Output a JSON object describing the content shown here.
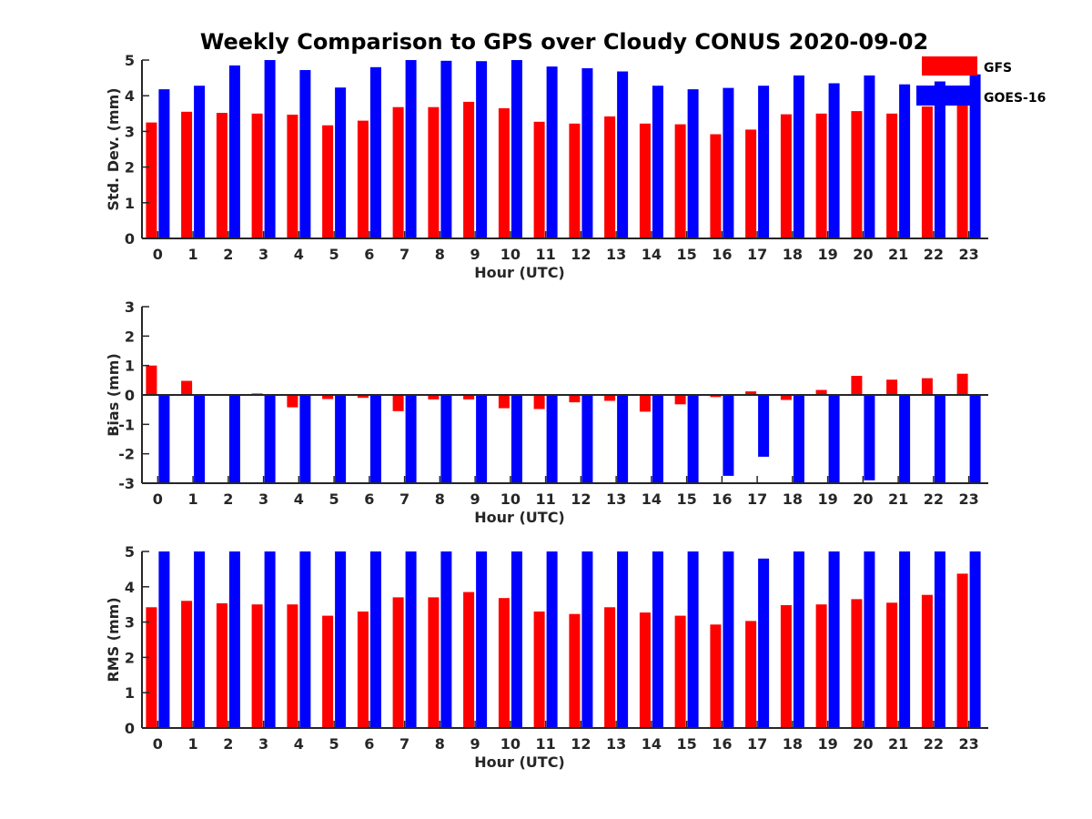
{
  "title": "Weekly Comparison to GPS over Cloudy CONUS 2020-09-02",
  "colors": {
    "GFS": "#ff0000",
    "GOES-16": "#0000ff",
    "axis": "#262626"
  },
  "legend": {
    "items": [
      "GFS",
      "GOES-16"
    ],
    "placement": "top-right"
  },
  "chart_data": [
    {
      "type": "bar",
      "xlabel": "Hour (UTC)",
      "ylabel": "Std. Dev. (mm)",
      "ylim": [
        0,
        5
      ],
      "yticks": [
        0,
        1,
        2,
        3,
        4,
        5
      ],
      "categories": [
        "0",
        "1",
        "2",
        "3",
        "4",
        "5",
        "6",
        "7",
        "8",
        "9",
        "10",
        "11",
        "12",
        "13",
        "14",
        "15",
        "16",
        "17",
        "18",
        "19",
        "20",
        "21",
        "22",
        "23"
      ],
      "series": [
        {
          "name": "GFS",
          "values": [
            3.25,
            3.55,
            3.52,
            3.5,
            3.47,
            3.17,
            3.3,
            3.68,
            3.68,
            3.83,
            3.65,
            3.27,
            3.22,
            3.42,
            3.22,
            3.2,
            2.92,
            3.05,
            3.48,
            3.5,
            3.57,
            3.5,
            3.7,
            3.85
          ]
        },
        {
          "name": "GOES-16",
          "values": [
            4.18,
            4.28,
            4.85,
            5.0,
            4.72,
            4.23,
            4.8,
            5.0,
            4.98,
            4.97,
            5.0,
            4.82,
            4.77,
            4.68,
            4.28,
            4.18,
            4.22,
            4.28,
            4.57,
            4.35,
            4.57,
            4.32,
            4.4,
            4.6
          ]
        }
      ]
    },
    {
      "type": "bar",
      "xlabel": "Hour (UTC)",
      "ylabel": "Bias (mm)",
      "ylim": [
        -3,
        3
      ],
      "yticks": [
        -3,
        -2,
        -1,
        0,
        1,
        2,
        3
      ],
      "categories": [
        "0",
        "1",
        "2",
        "3",
        "4",
        "5",
        "6",
        "7",
        "8",
        "9",
        "10",
        "11",
        "12",
        "13",
        "14",
        "15",
        "16",
        "17",
        "18",
        "19",
        "20",
        "21",
        "22",
        "23"
      ],
      "series": [
        {
          "name": "GFS",
          "values": [
            1.0,
            0.48,
            -0.02,
            0.05,
            -0.42,
            -0.14,
            -0.1,
            -0.55,
            -0.15,
            -0.15,
            -0.45,
            -0.48,
            -0.25,
            -0.2,
            -0.57,
            -0.32,
            -0.07,
            0.12,
            -0.17,
            0.17,
            0.65,
            0.52,
            0.57,
            0.72
          ]
        },
        {
          "name": "GOES-16",
          "values": [
            -3.0,
            -3.0,
            -3.0,
            -3.0,
            -3.0,
            -3.0,
            -3.0,
            -3.0,
            -3.0,
            -3.0,
            -3.0,
            -3.0,
            -3.0,
            -3.0,
            -3.0,
            -3.0,
            -2.75,
            -2.1,
            -3.0,
            -3.0,
            -2.9,
            -3.0,
            -3.0,
            -3.0
          ]
        }
      ]
    },
    {
      "type": "bar",
      "xlabel": "Hour (UTC)",
      "ylabel": "RMS (mm)",
      "ylim": [
        0,
        5
      ],
      "yticks": [
        0,
        1,
        2,
        3,
        4,
        5
      ],
      "categories": [
        "0",
        "1",
        "2",
        "3",
        "4",
        "5",
        "6",
        "7",
        "8",
        "9",
        "10",
        "11",
        "12",
        "13",
        "14",
        "15",
        "16",
        "17",
        "18",
        "19",
        "20",
        "21",
        "22",
        "23"
      ],
      "series": [
        {
          "name": "GFS",
          "values": [
            3.42,
            3.6,
            3.53,
            3.5,
            3.5,
            3.18,
            3.3,
            3.7,
            3.7,
            3.85,
            3.68,
            3.3,
            3.23,
            3.42,
            3.27,
            3.18,
            2.93,
            3.03,
            3.48,
            3.5,
            3.65,
            3.55,
            3.77,
            4.37
          ]
        },
        {
          "name": "GOES-16",
          "values": [
            5.0,
            5.0,
            5.0,
            5.0,
            5.0,
            5.0,
            5.0,
            5.0,
            5.0,
            5.0,
            5.0,
            5.0,
            5.0,
            5.0,
            5.0,
            5.0,
            5.0,
            4.8,
            5.0,
            5.0,
            5.0,
            5.0,
            5.0,
            5.0
          ]
        }
      ]
    }
  ]
}
